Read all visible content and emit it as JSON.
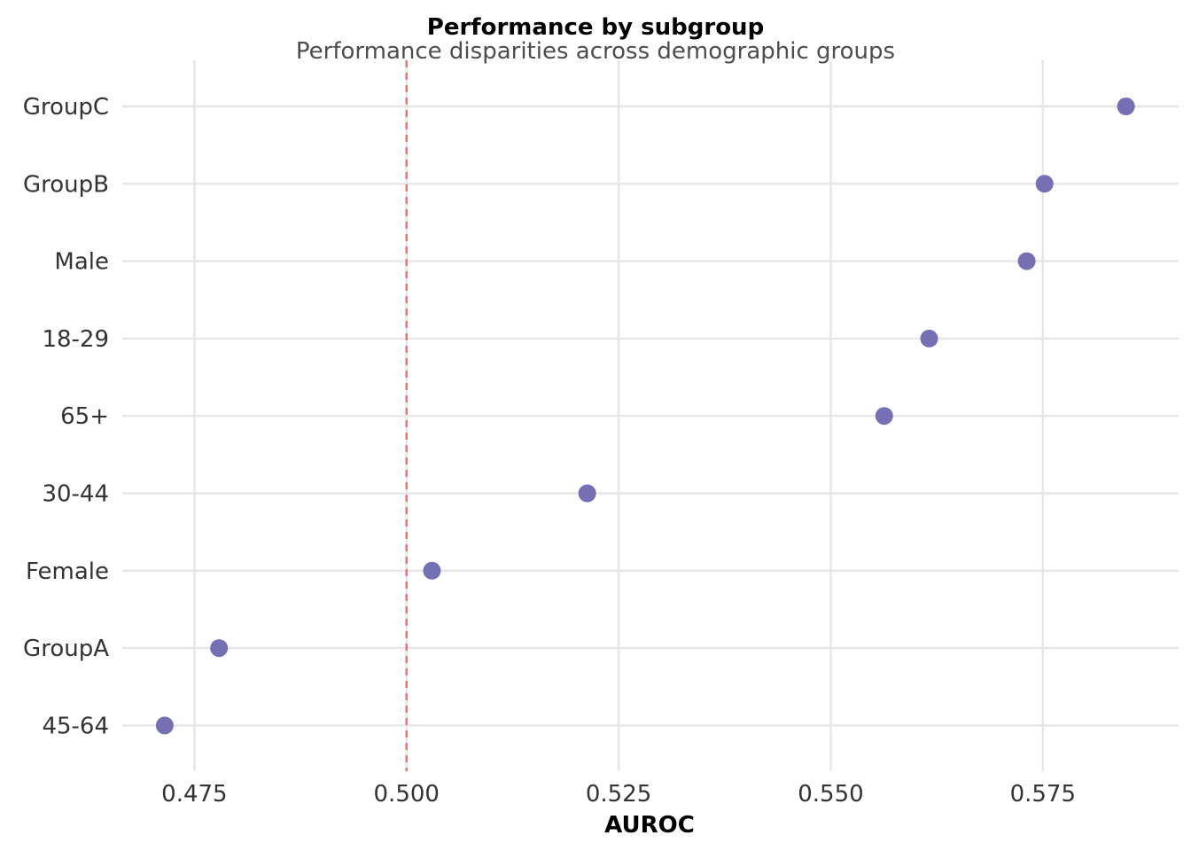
{
  "chart_data": {
    "type": "scatter",
    "title": "Performance by subgroup",
    "subtitle": "Performance disparities across demographic groups",
    "xlabel": "AUROC",
    "ylabel": "",
    "xlim": [
      0.4665,
      0.591
    ],
    "x_ticks": [
      0.475,
      0.5,
      0.525,
      0.55,
      0.575
    ],
    "x_tick_labels": [
      "0.475",
      "0.500",
      "0.525",
      "0.550",
      "0.575"
    ],
    "categories": [
      "GroupC",
      "GroupB",
      "Male",
      "18-29",
      "65+",
      "30-44",
      "Female",
      "GroupA",
      "45-64"
    ],
    "values": [
      0.5848,
      0.5752,
      0.5731,
      0.5616,
      0.5563,
      0.5213,
      0.503,
      0.4779,
      0.4715
    ],
    "reference_line": {
      "x": 0.5,
      "style": "dashed",
      "color": "#f07070"
    },
    "point_color": "#7570b3",
    "grid": true,
    "legend": "none"
  }
}
